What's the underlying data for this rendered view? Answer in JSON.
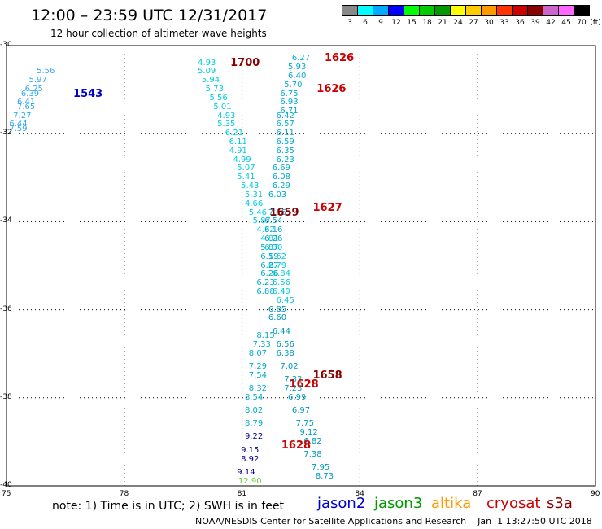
{
  "title": "12:00 – 23:59 UTC 12/31/2017",
  "subtitle": "12 hour collection of altimeter wave heights",
  "legend": {
    "labels": [
      "3",
      "6",
      "9",
      "12",
      "15",
      "18",
      "21",
      "24",
      "27",
      "30",
      "33",
      "36",
      "39",
      "42",
      "45",
      "70"
    ],
    "unit": "(ft)",
    "colors": [
      "#888888",
      "#00ffff",
      "#00aaff",
      "#0000ff",
      "#00ff00",
      "#00cc00",
      "#009900",
      "#ffff00",
      "#ffcc00",
      "#ff9900",
      "#ff3300",
      "#cc0000",
      "#880000",
      "#cc66cc",
      "#ff66ff",
      "#000000"
    ]
  },
  "axes": {
    "x_ticks": [
      "75",
      "78",
      "81",
      "84",
      "87",
      "90"
    ],
    "y_ticks": [
      "-30",
      "-32",
      "-34",
      "-36",
      "-38",
      "-40"
    ]
  },
  "note": "note: 1) Time is in UTC; 2) SWH is in feet",
  "satellites": [
    {
      "name": "jason2",
      "color": "#0000cc"
    },
    {
      "name": "jason3",
      "color": "#009900"
    },
    {
      "name": "altika",
      "color": "#ff9900"
    },
    {
      "name": "cryosat",
      "color": "#cc0000"
    },
    {
      "name": "s3a",
      "color": "#880000"
    }
  ],
  "credit": "NOAA/NESDIS Center for Satellite Applications and Research    Jan  1 13:27:50 UTC 2018",
  "chart_data": {
    "type": "scatter",
    "xlim": [
      75,
      90
    ],
    "ylim": [
      -40,
      -30
    ],
    "time_labels": [
      {
        "text": "1543",
        "lon": 76.7,
        "lat": -31.1,
        "color": "#0000cc"
      },
      {
        "text": "1700",
        "lon": 80.7,
        "lat": -30.4,
        "color": "#880000"
      },
      {
        "text": "1626",
        "lon": 83.1,
        "lat": -30.3,
        "color": "#cc0000"
      },
      {
        "text": "1626",
        "lon": 82.9,
        "lat": -31.0,
        "color": "#cc0000"
      },
      {
        "text": "1659",
        "lon": 81.7,
        "lat": -33.8,
        "color": "#880000"
      },
      {
        "text": "1627",
        "lon": 82.8,
        "lat": -33.7,
        "color": "#cc0000"
      },
      {
        "text": "1658",
        "lon": 82.8,
        "lat": -37.5,
        "color": "#880000"
      },
      {
        "text": "1628",
        "lon": 82.2,
        "lat": -37.7,
        "color": "#cc0000"
      },
      {
        "text": "1628",
        "lon": 82.0,
        "lat": -39.1,
        "color": "#cc0000"
      }
    ],
    "tracks": [
      {
        "color": "#33aaee",
        "points": [
          [
            "5.56",
            76.0,
            -30.6
          ],
          [
            "5.97",
            75.8,
            -30.8
          ],
          [
            "6.25",
            75.7,
            -31.0
          ],
          [
            "6.39",
            75.6,
            -31.1
          ],
          [
            "6.41",
            75.5,
            -31.3
          ],
          [
            "7.65",
            75.5,
            -31.4
          ],
          [
            "7.27",
            75.4,
            -31.6
          ],
          [
            "6.44",
            75.3,
            -31.8
          ],
          [
            "7.59",
            75.3,
            -31.9
          ]
        ]
      },
      {
        "color": "#00ccdd",
        "points": [
          [
            "4.93",
            80.1,
            -30.4
          ],
          [
            "5.09",
            80.1,
            -30.6
          ],
          [
            "5.94",
            80.2,
            -30.8
          ],
          [
            "5.73",
            80.3,
            -31.0
          ],
          [
            "5.56",
            80.4,
            -31.2
          ],
          [
            "5.01",
            80.5,
            -31.4
          ],
          [
            "4.93",
            80.6,
            -31.6
          ],
          [
            "5.35",
            80.6,
            -31.8
          ],
          [
            "6.21",
            80.8,
            -32.0
          ],
          [
            "6.11",
            80.9,
            -32.2
          ],
          [
            "4.91",
            80.9,
            -32.4
          ],
          [
            "4.99",
            81.0,
            -32.6
          ],
          [
            "5.07",
            81.1,
            -32.8
          ],
          [
            "5.41",
            81.1,
            -33.0
          ],
          [
            "5.43",
            81.2,
            -33.2
          ],
          [
            "5.31",
            81.3,
            -33.4
          ],
          [
            "4.66",
            81.3,
            -33.6
          ],
          [
            "5.46",
            81.4,
            -33.8
          ],
          [
            "5.87",
            81.5,
            -34.0
          ],
          [
            "4.82",
            81.6,
            -34.2
          ],
          [
            "4.81",
            81.7,
            -34.4
          ],
          [
            "6.30",
            81.8,
            -34.6
          ],
          [
            "5.62",
            81.9,
            -34.8
          ],
          [
            "6.79",
            81.9,
            -35.0
          ],
          [
            "6.84",
            82.0,
            -35.2
          ],
          [
            "6.56",
            82.0,
            -35.4
          ],
          [
            "6.49",
            82.0,
            -35.6
          ],
          [
            "6.45",
            82.1,
            -35.8
          ]
        ]
      },
      {
        "color": "#00aacc",
        "points": [
          [
            "6.27",
            82.5,
            -30.3
          ],
          [
            "5.93",
            82.4,
            -30.5
          ],
          [
            "6.40",
            82.4,
            -30.7
          ],
          [
            "5.70",
            82.3,
            -30.9
          ],
          [
            "6.75",
            82.2,
            -31.1
          ],
          [
            "6.93",
            82.2,
            -31.3
          ],
          [
            "6.71",
            82.2,
            -31.5
          ],
          [
            "6.42",
            82.1,
            -31.6
          ],
          [
            "6.57",
            82.1,
            -31.8
          ],
          [
            "6.11",
            82.1,
            -32.0
          ],
          [
            "6.59",
            82.1,
            -32.2
          ],
          [
            "6.35",
            82.1,
            -32.4
          ],
          [
            "6.23",
            82.1,
            -32.6
          ],
          [
            "6.69",
            82.0,
            -32.8
          ],
          [
            "6.08",
            82.0,
            -33.0
          ],
          [
            "6.29",
            82.0,
            -33.2
          ],
          [
            "6.03",
            81.9,
            -33.4
          ],
          [
            "7.15",
            81.9,
            -33.8
          ],
          [
            "6.54",
            81.8,
            -34.0
          ],
          [
            "6.16",
            81.8,
            -34.2
          ],
          [
            "6.26",
            81.8,
            -34.4
          ],
          [
            "5.87",
            81.7,
            -34.6
          ],
          [
            "6.19",
            81.7,
            -34.8
          ],
          [
            "6.27",
            81.7,
            -35.0
          ],
          [
            "6.26",
            81.7,
            -35.2
          ],
          [
            "6.23",
            81.6,
            -35.4
          ],
          [
            "6.88",
            81.6,
            -35.6
          ]
        ]
      },
      {
        "color": "#0099bb",
        "points": [
          [
            "6.85",
            81.9,
            -36.0
          ],
          [
            "6.60",
            81.9,
            -36.2
          ],
          [
            "6.44",
            82.0,
            -36.5
          ],
          [
            "6.56",
            82.1,
            -36.8
          ],
          [
            "6.38",
            82.1,
            -37.0
          ],
          [
            "7.02",
            82.2,
            -37.3
          ],
          [
            "7.32",
            82.3,
            -37.6
          ],
          [
            "7.23",
            82.3,
            -37.8
          ],
          [
            "6.99",
            82.4,
            -38.0
          ],
          [
            "6.97",
            82.5,
            -38.3
          ],
          [
            "7.75",
            82.6,
            -38.6
          ],
          [
            "9.12",
            82.7,
            -38.8
          ],
          [
            "6.82",
            82.8,
            -39.0
          ],
          [
            "7.38",
            82.8,
            -39.3
          ],
          [
            "7.95",
            83.0,
            -39.6
          ],
          [
            "8.73",
            83.1,
            -39.8
          ]
        ]
      },
      {
        "color": "#00aacc",
        "points": [
          [
            "8.15",
            81.6,
            -36.6
          ],
          [
            "7.33",
            81.5,
            -36.8
          ],
          [
            "8.07",
            81.4,
            -37.0
          ],
          [
            "7.29",
            81.4,
            -37.3
          ],
          [
            "7.54",
            81.4,
            -37.5
          ],
          [
            "8.32",
            81.4,
            -37.8
          ],
          [
            "8.54",
            81.3,
            -38.0
          ],
          [
            "8.02",
            81.3,
            -38.3
          ],
          [
            "8.79",
            81.3,
            -38.6
          ]
        ]
      },
      {
        "color": "#000088",
        "points": [
          [
            "9.22",
            81.3,
            -38.9
          ],
          [
            "9.15",
            81.2,
            -39.2
          ],
          [
            "8.92",
            81.2,
            -39.4
          ],
          [
            "9.14",
            81.1,
            -39.7
          ]
        ]
      },
      {
        "color": "#66cc33",
        "points": [
          [
            "12.90",
            81.2,
            -39.9
          ]
        ]
      }
    ]
  }
}
